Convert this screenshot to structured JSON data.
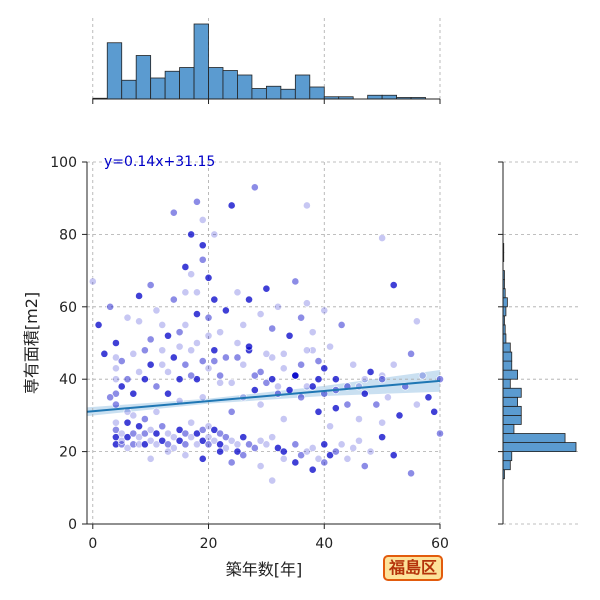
{
  "chart_data": {
    "type": "scatter",
    "xlabel": "築年数[年]",
    "ylabel": "専有面積[m2]",
    "xlim": [
      -1,
      60
    ],
    "ylim": [
      0,
      100
    ],
    "xticks": [
      0,
      20,
      40,
      60
    ],
    "yticks": [
      0,
      20,
      40,
      60,
      80,
      100
    ],
    "grid": true,
    "colors": {
      "points": "#0000c8",
      "fit": "#1f77b4",
      "hist": "#5b9bd0",
      "ci": "#b8d6ec"
    },
    "regression": {
      "label": "y=0.14x+31.15",
      "slope": 0.14,
      "intercept": 31.15
    },
    "badge": "福島区",
    "x_hist": {
      "bin_edges": [
        0,
        2.5,
        5,
        7.5,
        10,
        12.5,
        15,
        17.5,
        20,
        22.5,
        25,
        27.5,
        30,
        32.5,
        35,
        37.5,
        40,
        42.5,
        45,
        47.5,
        50,
        52.5,
        55,
        57.5,
        60
      ],
      "counts": [
        1,
        75,
        25,
        58,
        28,
        37,
        42,
        100,
        42,
        38,
        32,
        14,
        17,
        13,
        32,
        16,
        3,
        3,
        0,
        5,
        5,
        2,
        2,
        0
      ]
    },
    "y_hist": {
      "bin_edges": [
        10,
        12.5,
        15,
        17.5,
        20,
        22.5,
        25,
        27.5,
        30,
        32.5,
        35,
        37.5,
        40,
        42.5,
        45,
        47.5,
        50,
        52.5,
        55,
        57.5,
        60,
        62.5,
        65,
        67.5,
        70,
        72.5,
        75,
        77.5,
        80,
        82.5,
        85,
        87.5,
        90,
        92.5,
        95,
        97.5,
        100
      ],
      "counts": [
        0,
        2,
        10,
        12,
        100,
        85,
        15,
        25,
        25,
        20,
        25,
        10,
        20,
        12,
        12,
        10,
        4,
        3,
        2,
        4,
        6,
        3,
        2,
        2,
        0,
        1,
        1,
        0,
        0,
        0,
        0,
        0,
        0,
        0,
        0,
        0
      ]
    },
    "points": [
      [
        4,
        22
      ],
      [
        4,
        24
      ],
      [
        4,
        26
      ],
      [
        5,
        22
      ],
      [
        5,
        23
      ],
      [
        5,
        25
      ],
      [
        6,
        21
      ],
      [
        6,
        24
      ],
      [
        6,
        28
      ],
      [
        7,
        22
      ],
      [
        7,
        25
      ],
      [
        7,
        30
      ],
      [
        8,
        22
      ],
      [
        8,
        24
      ],
      [
        8,
        27
      ],
      [
        9,
        22
      ],
      [
        9,
        25
      ],
      [
        9,
        29
      ],
      [
        10,
        23
      ],
      [
        10,
        26
      ],
      [
        11,
        22
      ],
      [
        11,
        25
      ],
      [
        12,
        23
      ],
      [
        12,
        27
      ],
      [
        13,
        22
      ],
      [
        13,
        25
      ],
      [
        14,
        24
      ],
      [
        14,
        21
      ],
      [
        15,
        23
      ],
      [
        15,
        26
      ],
      [
        16,
        22
      ],
      [
        16,
        25
      ],
      [
        17,
        24
      ],
      [
        17,
        28
      ],
      [
        18,
        22
      ],
      [
        18,
        25
      ],
      [
        19,
        23
      ],
      [
        19,
        26
      ],
      [
        20,
        22
      ],
      [
        20,
        24
      ],
      [
        20,
        27
      ],
      [
        21,
        23
      ],
      [
        21,
        26
      ],
      [
        22,
        22
      ],
      [
        22,
        25
      ],
      [
        23,
        24
      ],
      [
        23,
        21
      ],
      [
        24,
        23
      ],
      [
        25,
        22
      ],
      [
        25,
        20
      ],
      [
        26,
        24
      ],
      [
        27,
        22
      ],
      [
        28,
        21
      ],
      [
        29,
        23
      ],
      [
        30,
        22
      ],
      [
        31,
        24
      ],
      [
        32,
        21
      ],
      [
        33,
        20
      ],
      [
        35,
        22
      ],
      [
        36,
        19
      ],
      [
        37,
        20
      ],
      [
        38,
        21
      ],
      [
        39,
        18
      ],
      [
        40,
        22
      ],
      [
        41,
        19
      ],
      [
        4,
        33
      ],
      [
        4,
        36
      ],
      [
        4,
        40
      ],
      [
        4,
        43
      ],
      [
        4,
        46
      ],
      [
        4,
        50
      ],
      [
        5,
        38
      ],
      [
        5,
        45
      ],
      [
        6,
        40
      ],
      [
        7,
        47
      ],
      [
        8,
        42
      ],
      [
        8,
        56
      ],
      [
        9,
        40
      ],
      [
        10,
        44
      ],
      [
        10,
        51
      ],
      [
        11,
        38
      ],
      [
        12,
        48
      ],
      [
        12,
        55
      ],
      [
        13,
        42
      ],
      [
        14,
        46
      ],
      [
        15,
        40
      ],
      [
        15,
        53
      ],
      [
        16,
        44
      ],
      [
        16,
        64
      ],
      [
        17,
        48
      ],
      [
        17,
        69
      ],
      [
        18,
        40
      ],
      [
        18,
        58
      ],
      [
        19,
        45
      ],
      [
        19,
        73
      ],
      [
        19,
        84
      ],
      [
        20,
        52
      ],
      [
        20,
        43
      ],
      [
        21,
        48
      ],
      [
        21,
        62
      ],
      [
        22,
        41
      ],
      [
        23,
        46
      ],
      [
        24,
        39
      ],
      [
        25,
        50
      ],
      [
        26,
        44
      ],
      [
        27,
        48
      ],
      [
        28,
        37
      ],
      [
        29,
        42
      ],
      [
        30,
        39
      ],
      [
        31,
        46
      ],
      [
        32,
        38
      ],
      [
        33,
        43
      ],
      [
        34,
        37
      ],
      [
        35,
        41
      ],
      [
        36,
        44
      ],
      [
        36,
        57
      ],
      [
        37,
        38
      ],
      [
        37,
        61
      ],
      [
        38,
        48
      ],
      [
        39,
        40
      ],
      [
        40,
        43
      ],
      [
        42,
        37
      ],
      [
        44,
        38
      ],
      [
        47,
        40
      ],
      [
        50,
        41
      ],
      [
        0,
        67
      ],
      [
        1,
        55
      ],
      [
        2,
        47
      ],
      [
        3,
        60
      ],
      [
        3,
        35
      ],
      [
        4,
        28
      ],
      [
        6,
        31
      ],
      [
        6,
        57
      ],
      [
        7,
        36
      ],
      [
        8,
        63
      ],
      [
        9,
        48
      ],
      [
        10,
        66
      ],
      [
        11,
        31
      ],
      [
        11,
        59
      ],
      [
        12,
        44
      ],
      [
        13,
        52
      ],
      [
        13,
        36
      ],
      [
        14,
        86
      ],
      [
        14,
        62
      ],
      [
        15,
        49
      ],
      [
        15,
        34
      ],
      [
        16,
        55
      ],
      [
        16,
        71
      ],
      [
        17,
        80
      ],
      [
        17,
        41
      ],
      [
        18,
        89
      ],
      [
        18,
        64
      ],
      [
        18,
        50
      ],
      [
        19,
        35
      ],
      [
        19,
        77
      ],
      [
        20,
        68
      ],
      [
        20,
        57
      ],
      [
        21,
        45
      ],
      [
        21,
        80
      ],
      [
        22,
        39
      ],
      [
        22,
        53
      ],
      [
        23,
        59
      ],
      [
        24,
        88
      ],
      [
        24,
        31
      ],
      [
        25,
        46
      ],
      [
        25,
        64
      ],
      [
        26,
        55
      ],
      [
        26,
        35
      ],
      [
        27,
        49
      ],
      [
        27,
        62
      ],
      [
        28,
        93
      ],
      [
        28,
        41
      ],
      [
        29,
        58
      ],
      [
        29,
        33
      ],
      [
        30,
        47
      ],
      [
        30,
        65
      ],
      [
        31,
        40
      ],
      [
        31,
        54
      ],
      [
        32,
        36
      ],
      [
        32,
        60
      ],
      [
        33,
        47
      ],
      [
        33,
        29
      ],
      [
        34,
        52
      ],
      [
        35,
        41
      ],
      [
        35,
        67
      ],
      [
        36,
        35
      ],
      [
        37,
        48
      ],
      [
        37,
        88
      ],
      [
        38,
        53
      ],
      [
        38,
        38
      ],
      [
        39,
        31
      ],
      [
        39,
        45
      ],
      [
        40,
        36
      ],
      [
        40,
        59
      ],
      [
        41,
        49
      ],
      [
        41,
        27
      ],
      [
        42,
        40
      ],
      [
        42,
        32
      ],
      [
        43,
        55
      ],
      [
        44,
        33
      ],
      [
        45,
        44
      ],
      [
        46,
        38
      ],
      [
        46,
        29
      ],
      [
        47,
        36
      ],
      [
        48,
        42
      ],
      [
        49,
        33
      ],
      [
        50,
        40
      ],
      [
        50,
        79
      ],
      [
        51,
        35
      ],
      [
        52,
        44
      ],
      [
        52,
        66
      ],
      [
        53,
        30
      ],
      [
        54,
        38
      ],
      [
        55,
        47
      ],
      [
        56,
        33
      ],
      [
        56,
        56
      ],
      [
        57,
        41
      ],
      [
        58,
        35
      ],
      [
        59,
        31
      ],
      [
        60,
        40
      ],
      [
        60,
        25
      ],
      [
        10,
        18
      ],
      [
        13,
        20
      ],
      [
        16,
        19
      ],
      [
        19,
        18
      ],
      [
        22,
        20
      ],
      [
        24,
        17
      ],
      [
        26,
        19
      ],
      [
        29,
        16
      ],
      [
        31,
        12
      ],
      [
        33,
        18
      ],
      [
        35,
        17
      ],
      [
        38,
        15
      ],
      [
        40,
        17
      ],
      [
        42,
        20
      ],
      [
        44,
        18
      ],
      [
        46,
        23
      ],
      [
        48,
        20
      ],
      [
        50,
        24
      ],
      [
        52,
        19
      ],
      [
        55,
        14
      ],
      [
        47,
        16
      ],
      [
        43,
        22
      ],
      [
        45,
        21
      ],
      [
        50,
        28
      ]
    ]
  }
}
